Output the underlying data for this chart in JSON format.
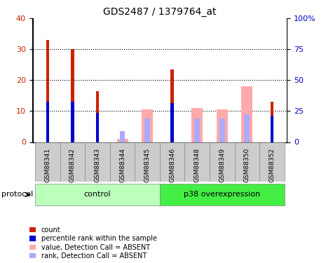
{
  "title": "GDS2487 / 1379764_at",
  "samples": [
    "GSM88341",
    "GSM88342",
    "GSM88343",
    "GSM88344",
    "GSM88345",
    "GSM88346",
    "GSM88348",
    "GSM88349",
    "GSM88350",
    "GSM88352"
  ],
  "count": [
    33,
    30,
    16.5,
    0,
    0,
    23.5,
    0,
    0,
    0,
    13
  ],
  "percentile_scaled": [
    13,
    13,
    9.5,
    0,
    0,
    12.5,
    0,
    0,
    0,
    8.5
  ],
  "absent_value": [
    0,
    0,
    0,
    1,
    10.5,
    0,
    11,
    10.5,
    18,
    0
  ],
  "absent_rank": [
    0,
    0,
    0,
    3.5,
    7.5,
    0,
    7.5,
    7.5,
    9,
    0
  ],
  "groups": [
    {
      "label": "control",
      "start": 0,
      "end": 5,
      "color": "#bbffbb"
    },
    {
      "label": "p38 overexpression",
      "start": 5,
      "end": 10,
      "color": "#44ee44"
    }
  ],
  "ylim_left": [
    0,
    40
  ],
  "ylim_right": [
    0,
    100
  ],
  "yticks_left": [
    0,
    10,
    20,
    30,
    40
  ],
  "ytick_labels_left": [
    "0",
    "10",
    "20",
    "30",
    "40"
  ],
  "yticks_right": [
    0,
    25,
    50,
    75,
    100
  ],
  "ytick_labels_right": [
    "0",
    "25",
    "50",
    "75",
    "100%"
  ],
  "count_color": "#cc2200",
  "percentile_color": "#0000cc",
  "absent_value_color": "#ffaaaa",
  "absent_rank_color": "#aaaaff",
  "grid_color": "#555555",
  "protocol_label": "protocol",
  "bg_color": "#ffffff",
  "tick_box_color": "#cccccc"
}
